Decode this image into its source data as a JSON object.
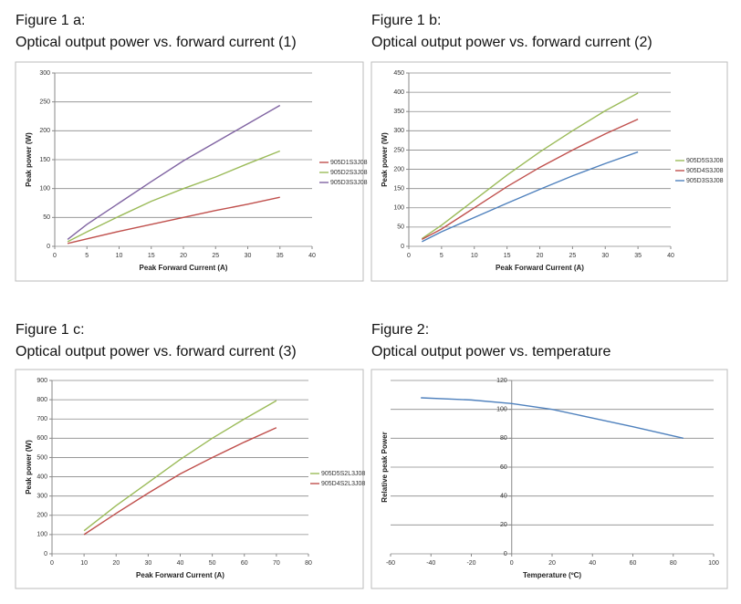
{
  "chart_data": [
    {
      "type": "line",
      "title": "Figure 1 a:",
      "subtitle": "Optical output power vs. forward current (1)",
      "x_label": "Peak Forward Current (A)",
      "y_label": "Peak power (W)",
      "x": [
        2,
        5,
        10,
        15,
        20,
        25,
        30,
        35
      ],
      "series": [
        {
          "name": "905D1S3J08",
          "color": "#c0504d",
          "values": [
            5,
            13,
            26,
            38,
            50,
            62,
            73,
            85
          ]
        },
        {
          "name": "905D2S3J08",
          "color": "#9bbb59",
          "values": [
            8,
            25,
            52,
            78,
            100,
            120,
            143,
            165
          ]
        },
        {
          "name": "905D3S3J08",
          "color": "#8064a2",
          "values": [
            12,
            38,
            75,
            112,
            148,
            180,
            212,
            244
          ]
        }
      ],
      "xlim": [
        0,
        40
      ],
      "xticks": [
        0,
        5,
        10,
        15,
        20,
        25,
        30,
        35,
        40
      ],
      "ylim": [
        0,
        300
      ],
      "yticks": [
        0,
        50,
        100,
        150,
        200,
        250,
        300
      ],
      "grid": true,
      "legend": "right"
    },
    {
      "type": "line",
      "title": "Figure 1 b:",
      "subtitle": "Optical output power vs. forward current (2)",
      "x_label": "Peak Forward Current (A)",
      "y_label": "Peak power (W)",
      "x": [
        2,
        5,
        10,
        15,
        20,
        25,
        30,
        35
      ],
      "series": [
        {
          "name": "905D5S3J08",
          "color": "#9bbb59",
          "values": [
            20,
            55,
            120,
            185,
            245,
            300,
            352,
            398
          ]
        },
        {
          "name": "905D4S3J08",
          "color": "#c0504d",
          "values": [
            18,
            45,
            100,
            155,
            205,
            250,
            292,
            330
          ]
        },
        {
          "name": "905D3S3J08",
          "color": "#4f81bd",
          "values": [
            12,
            38,
            75,
            112,
            148,
            183,
            215,
            245
          ]
        }
      ],
      "xlim": [
        0,
        40
      ],
      "xticks": [
        0,
        5,
        10,
        15,
        20,
        25,
        30,
        35,
        40
      ],
      "ylim": [
        0,
        450
      ],
      "yticks": [
        0,
        50,
        100,
        150,
        200,
        250,
        300,
        350,
        400,
        450
      ],
      "grid": true,
      "legend": "right"
    },
    {
      "type": "line",
      "title": "Figure 1 c:",
      "subtitle": "Optical output power vs. forward current (3)",
      "x_label": "Peak Forward Current (A)",
      "y_label": "Peak power (W)",
      "x": [
        10,
        20,
        30,
        40,
        50,
        60,
        70
      ],
      "series": [
        {
          "name": "905D5S2L3J08",
          "color": "#9bbb59",
          "values": [
            120,
            250,
            370,
            490,
            600,
            700,
            795
          ]
        },
        {
          "name": "905D4S2L3J08",
          "color": "#c0504d",
          "values": [
            100,
            210,
            315,
            415,
            500,
            580,
            655
          ]
        }
      ],
      "xlim": [
        0,
        80
      ],
      "xticks": [
        0,
        10,
        20,
        30,
        40,
        50,
        60,
        70,
        80
      ],
      "ylim": [
        0,
        900
      ],
      "yticks": [
        0,
        100,
        200,
        300,
        400,
        500,
        600,
        700,
        800,
        900
      ],
      "grid": true,
      "legend": "right"
    },
    {
      "type": "line",
      "title": "Figure 2:",
      "subtitle": "Optical output power vs. temperature",
      "x_label": "Temperature (ºC)",
      "y_label": "Relative peak Power",
      "x": [
        -45,
        -20,
        0,
        20,
        40,
        60,
        85
      ],
      "series": [
        {
          "color": "#4f81bd",
          "values": [
            108,
            106.5,
            104,
            100,
            94,
            88,
            80
          ]
        }
      ],
      "xlim": [
        -60,
        100
      ],
      "xticks": [
        -60,
        -40,
        -20,
        0,
        20,
        40,
        60,
        80,
        100
      ],
      "ylim": [
        0,
        120
      ],
      "yticks": [
        0,
        20,
        40,
        60,
        80,
        100,
        120
      ],
      "grid": true
    }
  ]
}
